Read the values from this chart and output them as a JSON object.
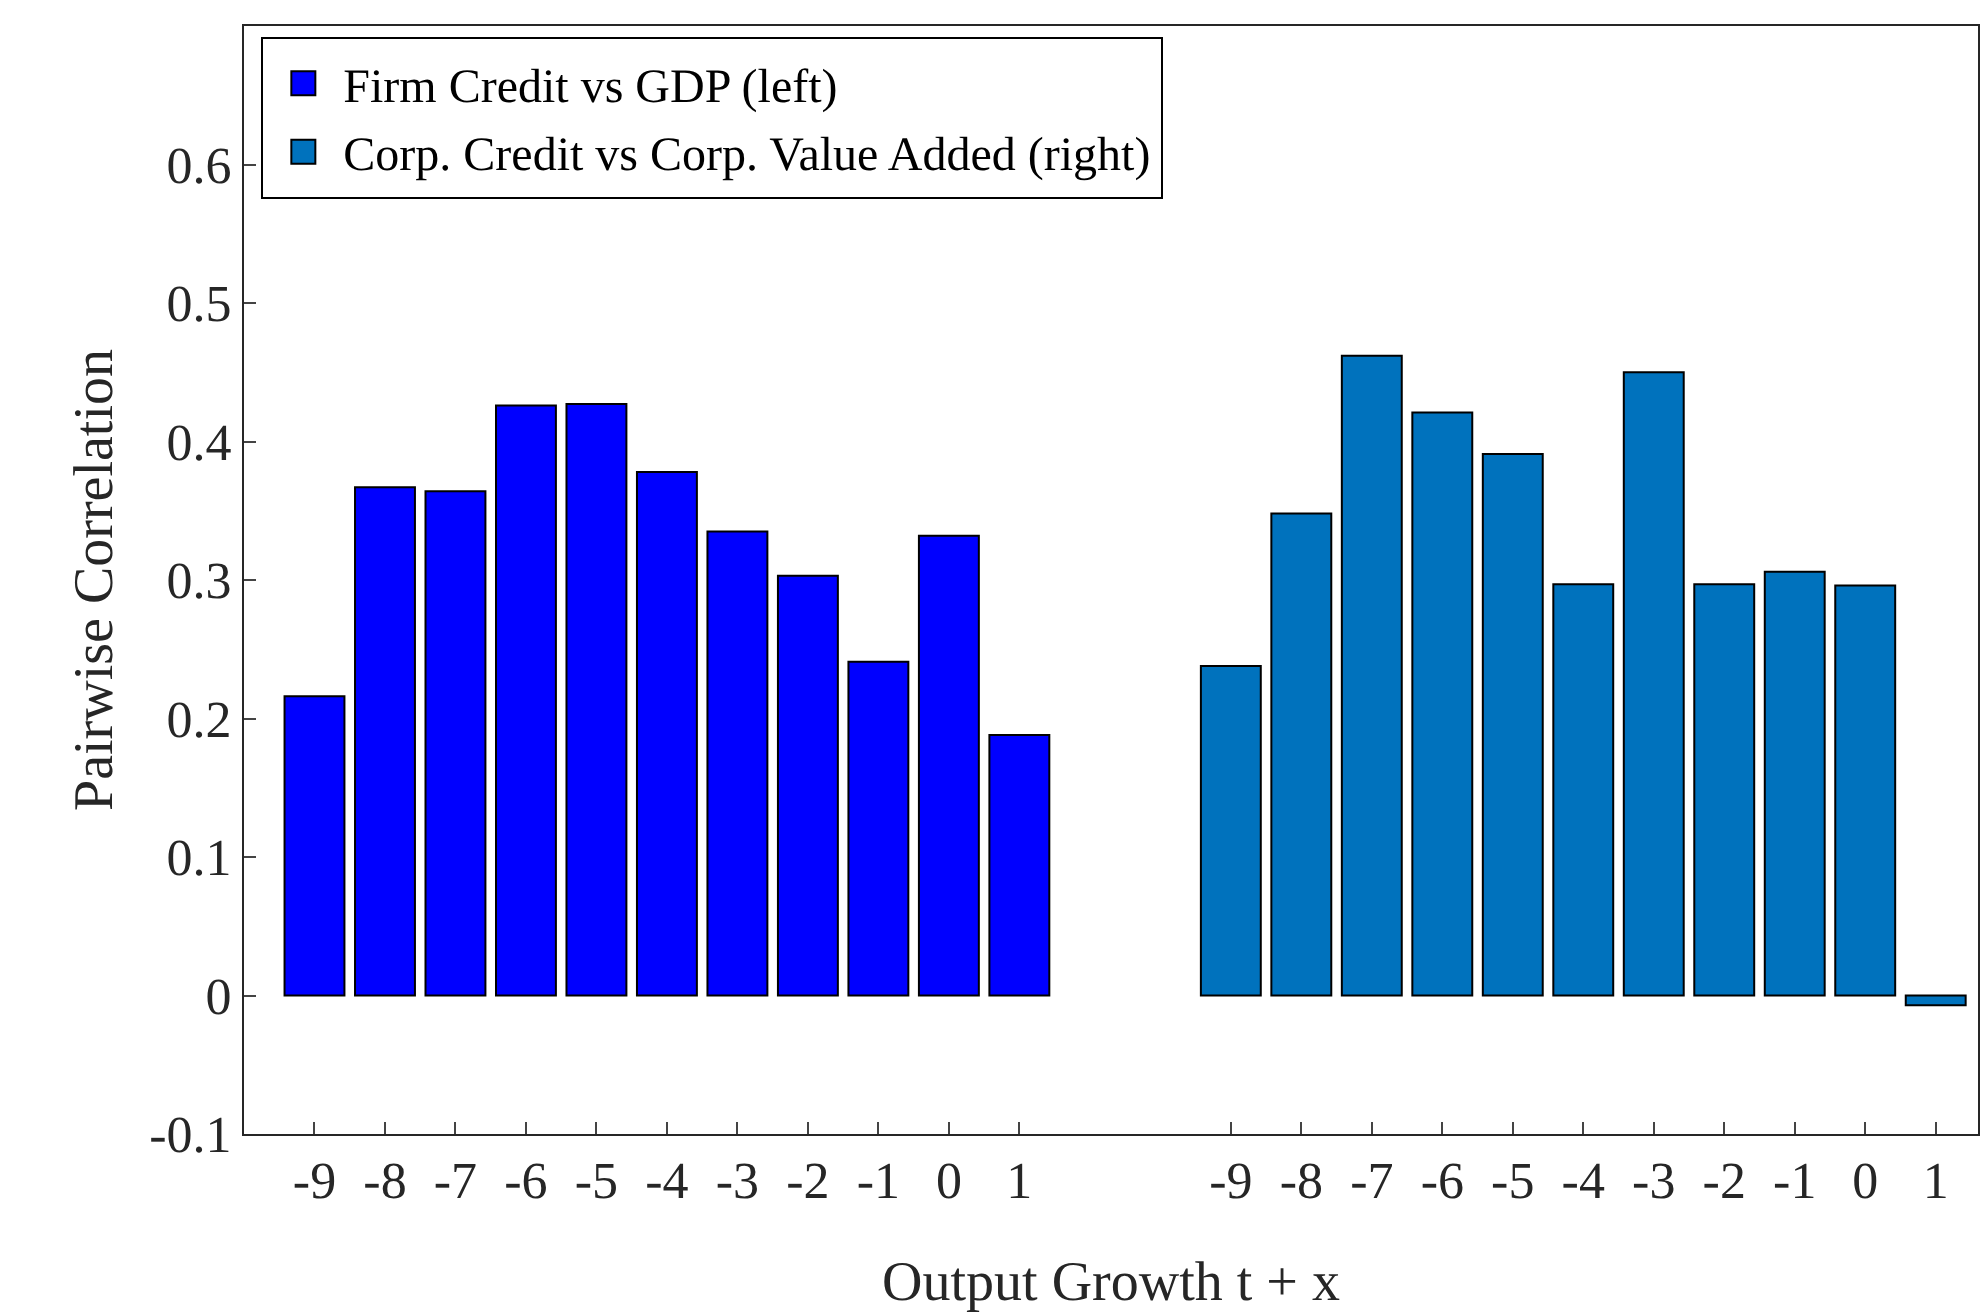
{
  "chart_data": {
    "type": "bar",
    "xlabel": "Output Growth t + x",
    "ylabel": "Pairwise Correlation",
    "categories": [
      "-9",
      "-8",
      "-7",
      "-6",
      "-5",
      "-4",
      "-3",
      "-2",
      "-1",
      "0",
      "1",
      null,
      null,
      "-9",
      "-8",
      "-7",
      "-6",
      "-5",
      "-4",
      "-3",
      "-2",
      "-1",
      "0",
      "1"
    ],
    "series": [
      {
        "name": "Firm Credit vs GDP (left)",
        "color": "#0000ff",
        "values": [
          0.216,
          0.367,
          0.364,
          0.426,
          0.427,
          0.378,
          0.335,
          0.303,
          0.241,
          0.332,
          0.188,
          null,
          null,
          null,
          null,
          null,
          null,
          null,
          null,
          null,
          null,
          null,
          null,
          null
        ]
      },
      {
        "name": "Corp. Credit vs Corp. Value Added (right)",
        "color": "#0072bd",
        "values": [
          null,
          null,
          null,
          null,
          null,
          null,
          null,
          null,
          null,
          null,
          null,
          null,
          null,
          0.238,
          0.348,
          0.462,
          0.421,
          0.391,
          0.297,
          0.45,
          0.297,
          0.306,
          0.296,
          -0.007
        ]
      }
    ],
    "ylim": [
      -0.1,
      0.7
    ],
    "yticks": [
      -0.1,
      0,
      0.1,
      0.2,
      0.3,
      0.4,
      0.5,
      0.6
    ],
    "legend": "top left",
    "grid": false
  }
}
